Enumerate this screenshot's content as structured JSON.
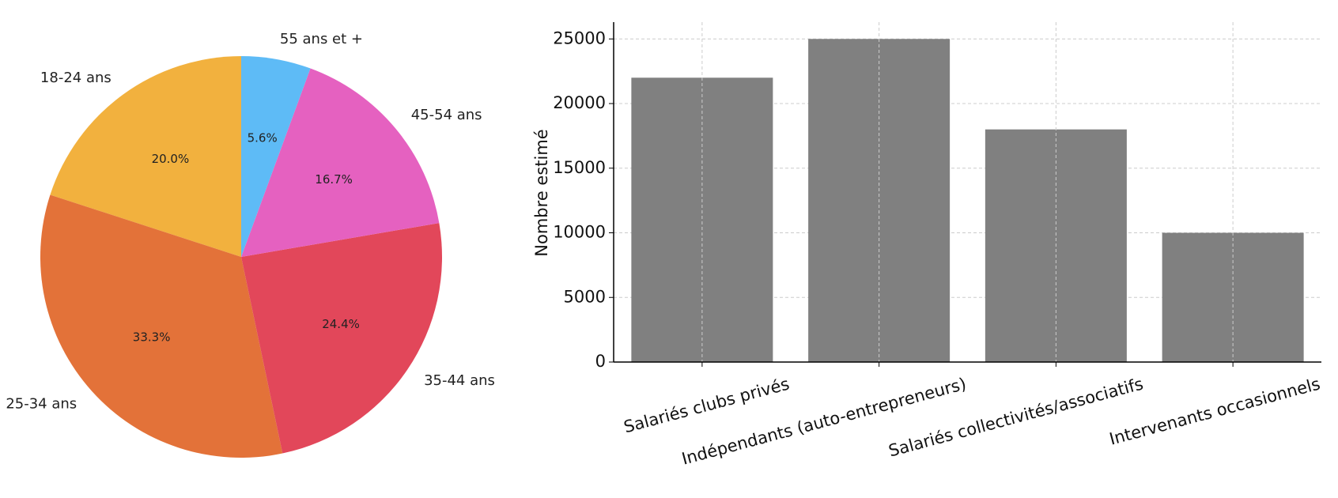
{
  "chart_data": [
    {
      "type": "pie",
      "categories": [
        "18-24 ans",
        "25-34 ans",
        "35-44 ans",
        "45-54 ans",
        "55 ans et +"
      ],
      "values": [
        20.0,
        33.3,
        24.4,
        16.7,
        5.6
      ],
      "value_labels": [
        "20.0%",
        "33.3%",
        "24.4%",
        "16.7%",
        "5.6%"
      ],
      "colors": [
        "#f2b13e",
        "#e37239",
        "#e2475a",
        "#e561c0",
        "#5ebbf6"
      ]
    },
    {
      "type": "bar",
      "ylabel": "Nombre estimé",
      "categories": [
        "Salariés clubs privés",
        "Indépendants (auto-entrepreneurs)",
        "Salariés collectivités/associatifs",
        "Intervenants occasionnels"
      ],
      "values": [
        22000,
        25000,
        18000,
        10000
      ],
      "color": "#808080",
      "ylim": [
        0,
        26300
      ],
      "yticks": [
        0,
        5000,
        10000,
        15000,
        20000,
        25000
      ],
      "grid": true
    }
  ]
}
